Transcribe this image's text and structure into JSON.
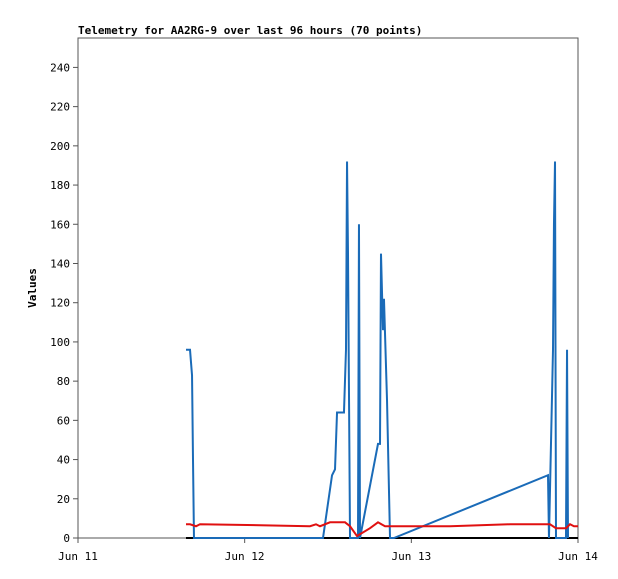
{
  "chart_data": {
    "type": "line",
    "title": "Telemetry for AA2RG-9 over last 96 hours (70 points)",
    "y_label": "Values",
    "xlim": [
      0,
      72
    ],
    "xticks": [
      {
        "value": 0,
        "label": "Jun 11"
      },
      {
        "value": 24,
        "label": "Jun 12"
      },
      {
        "value": 48,
        "label": "Jun 13"
      },
      {
        "value": 72,
        "label": "Jun 14"
      }
    ],
    "ylim": [
      0,
      255
    ],
    "yticks": [
      0,
      20,
      40,
      60,
      80,
      100,
      120,
      140,
      160,
      180,
      200,
      220,
      240
    ],
    "grid": false,
    "series": [
      {
        "color": "#000000",
        "x": [
          15.55,
          72
        ],
        "values": [
          0,
          0
        ]
      },
      {
        "color": "#1a6bb8",
        "x": [
          15.55,
          16.13,
          16.42,
          16.56,
          16.7,
          35.28,
          36.58,
          37.01,
          37.3,
          38.3,
          38.59,
          38.74,
          38.88,
          39.17,
          40.32,
          40.46,
          40.61,
          43.2,
          43.49,
          43.63,
          43.92,
          44.06,
          44.5,
          44.93,
          45.5,
          67.68,
          67.82,
          68.4,
          68.54,
          68.69,
          68.83,
          70.27,
          70.42,
          70.56
        ],
        "values": [
          96,
          96,
          83,
          40,
          0,
          0,
          32,
          35,
          64,
          64,
          96,
          192,
          145,
          0,
          0,
          160,
          0,
          48,
          48,
          145,
          106,
          122,
          70,
          0,
          0,
          32,
          0,
          96,
          160,
          192,
          0,
          0,
          96,
          0
        ]
      },
      {
        "color": "#e01010",
        "x": [
          15.55,
          16.13,
          16.99,
          17.57,
          26.21,
          33.41,
          34.27,
          34.85,
          36.29,
          38.45,
          39.17,
          40.18,
          42.05,
          43.2,
          44.21,
          53.57,
          62.21,
          67.97,
          68.83,
          70.27,
          70.85,
          71.42,
          72
        ],
        "values": [
          7,
          7,
          6,
          7,
          6.5,
          6,
          7,
          6,
          8,
          8,
          6,
          1,
          5,
          8,
          6,
          6,
          7,
          7,
          5,
          5,
          7,
          6,
          6
        ]
      }
    ]
  }
}
